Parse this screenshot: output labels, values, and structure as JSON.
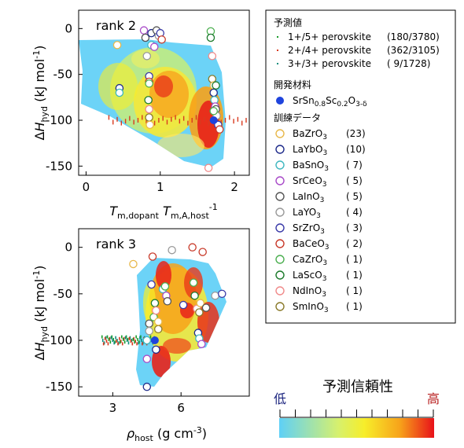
{
  "colors": {
    "low": "#62cdf5",
    "mid": "#f6ea2a",
    "high": "#e8111a",
    "label_low": "#1a237e",
    "label_high": "#b71c1c",
    "pred_green": "#1a9b2a",
    "pred_red": "#d93a1f",
    "pred_teal": "#128f7f",
    "dev_blue": "#1f44dd"
  },
  "colorbar": {
    "title": "予測信頼性",
    "low_label": "低",
    "high_label": "高",
    "ticks": 11
  },
  "legend": {
    "pred_title": "予測値",
    "pred_items": [
      {
        "label": "1+/5+ perovskite",
        "count": "(180/3780)",
        "color": "#1a9b2a"
      },
      {
        "label": "2+/4+ perovskite",
        "count": "(362/3105)",
        "color": "#d93a1f"
      },
      {
        "label": "3+/3+ perovskite",
        "count": "(   9/1728)",
        "color": "#128f7f"
      }
    ],
    "dev_title": "開発材料",
    "dev_item": {
      "main": "SrSn",
      "s1": "0.8",
      "mid": "Sc",
      "s2": "0.2",
      "o": "O",
      "s3": "3-δ"
    },
    "train_title": "訓練データ",
    "train_items": [
      {
        "base": "BaZrO",
        "sub": "3",
        "count": "(23)",
        "color": "#e8b84a"
      },
      {
        "base": "LaYbO",
        "sub": "3",
        "count": "(10)",
        "color": "#1d2a8a"
      },
      {
        "base": "BaSnO",
        "sub": "3",
        "count": "(  7)",
        "color": "#3fb7c0"
      },
      {
        "base": "SrCeO",
        "sub": "3",
        "count": "(  5)",
        "color": "#a84ac8"
      },
      {
        "base": "LaInO",
        "sub": "3",
        "count": "(  5)",
        "color": "#555555"
      },
      {
        "base": "LaYO",
        "sub": "3",
        "count": "(  4)",
        "color": "#999999"
      },
      {
        "base": "SrZrO",
        "sub": "3",
        "count": "(  3)",
        "color": "#3a3aa8"
      },
      {
        "base": "BaCeO",
        "sub": "3",
        "count": "(  2)",
        "color": "#c83a2a"
      },
      {
        "base": "CaZrO",
        "sub": "3",
        "count": "(  1)",
        "color": "#4caf50"
      },
      {
        "base": "LaScO",
        "sub": "3",
        "count": "(  1)",
        "color": "#1b7a2b"
      },
      {
        "base": "NdInO",
        "sub": "3",
        "count": "(  1)",
        "color": "#f08a8a"
      },
      {
        "base": "SmInO",
        "sub": "3",
        "count": "(  1)",
        "color": "#8a7a2a"
      }
    ]
  },
  "chart_data": [
    {
      "type": "scatter",
      "title": "rank 2",
      "ylabel": "ΔH_hyd (kJ mol^-1)",
      "xlabel": "T_m,dopant T_m,A,host^-1",
      "xlim": [
        -0.1,
        2.2
      ],
      "ylim": [
        -160,
        20
      ],
      "xticks": [
        0,
        1,
        2
      ],
      "yticks": [
        0,
        -50,
        -100,
        -150
      ],
      "background": "confidence heatmap (light blue = low, red = high) inside convex hull of training data",
      "predicted_red_2plus4plus": {
        "x_range": [
          0.3,
          2.15
        ],
        "y": -100
      },
      "developed_material": {
        "x": 1.72,
        "y": -100
      },
      "training_points": [
        [
          0.42,
          -18
        ],
        [
          0.45,
          -65
        ],
        [
          0.45,
          -70
        ],
        [
          0.78,
          -2
        ],
        [
          0.8,
          -10
        ],
        [
          0.82,
          -30
        ],
        [
          0.85,
          -52
        ],
        [
          0.85,
          -58
        ],
        [
          0.85,
          -60
        ],
        [
          0.84,
          -78
        ],
        [
          0.85,
          -88
        ],
        [
          0.85,
          -97
        ],
        [
          0.86,
          -105
        ],
        [
          0.88,
          -5
        ],
        [
          0.88,
          -18
        ],
        [
          0.92,
          -20
        ],
        [
          0.95,
          -2
        ],
        [
          0.98,
          -8
        ],
        [
          1.0,
          -5
        ],
        [
          1.02,
          -12
        ],
        [
          1.68,
          -3
        ],
        [
          1.68,
          -10
        ],
        [
          1.7,
          -30
        ],
        [
          1.7,
          -55
        ],
        [
          1.72,
          -62
        ],
        [
          1.72,
          -70
        ],
        [
          1.73,
          -78
        ],
        [
          1.74,
          -85
        ],
        [
          1.75,
          -88
        ],
        [
          1.76,
          -95
        ],
        [
          1.78,
          -105
        ],
        [
          1.8,
          -110
        ],
        [
          1.72,
          -90
        ],
        [
          1.75,
          -62
        ],
        [
          1.65,
          -152
        ]
      ]
    },
    {
      "type": "scatter",
      "title": "rank 3",
      "ylabel": "ΔH_hyd (kJ mol^-1)",
      "xlabel": "ρ_host (g cm^-3)",
      "xlim": [
        1.5,
        9.0
      ],
      "ylim": [
        -160,
        20
      ],
      "xticks": [
        3,
        6
      ],
      "yticks": [
        0,
        -50,
        -100,
        -150
      ],
      "background": "confidence heatmap (light blue = low, red = high) inside convex hull of training data",
      "predicted_mixed": {
        "x_range": [
          2.5,
          4.8
        ],
        "y": -100
      },
      "developed_material": {
        "x": 4.85,
        "y": -100
      },
      "training_points": [
        [
          3.9,
          -18
        ],
        [
          4.5,
          -150
        ],
        [
          4.5,
          -100
        ],
        [
          4.5,
          -120
        ],
        [
          4.6,
          -82
        ],
        [
          4.6,
          -90
        ],
        [
          4.7,
          -40
        ],
        [
          4.75,
          -10
        ],
        [
          4.8,
          -75
        ],
        [
          4.85,
          -60
        ],
        [
          4.9,
          -68
        ],
        [
          5.0,
          -88
        ],
        [
          5.0,
          -80
        ],
        [
          4.9,
          -110
        ],
        [
          5.2,
          -45
        ],
        [
          5.35,
          -52
        ],
        [
          5.4,
          -58
        ],
        [
          5.6,
          -3
        ],
        [
          6.1,
          -62
        ],
        [
          6.5,
          0
        ],
        [
          6.55,
          -38
        ],
        [
          6.6,
          -52
        ],
        [
          6.7,
          -66
        ],
        [
          6.8,
          -70
        ],
        [
          6.85,
          -60
        ],
        [
          6.75,
          -92
        ],
        [
          6.8,
          -98
        ],
        [
          6.9,
          -104
        ],
        [
          7.1,
          -65
        ],
        [
          7.5,
          -52
        ],
        [
          7.8,
          -50
        ],
        [
          6.95,
          -5
        ],
        [
          5.3,
          -42
        ]
      ]
    }
  ]
}
